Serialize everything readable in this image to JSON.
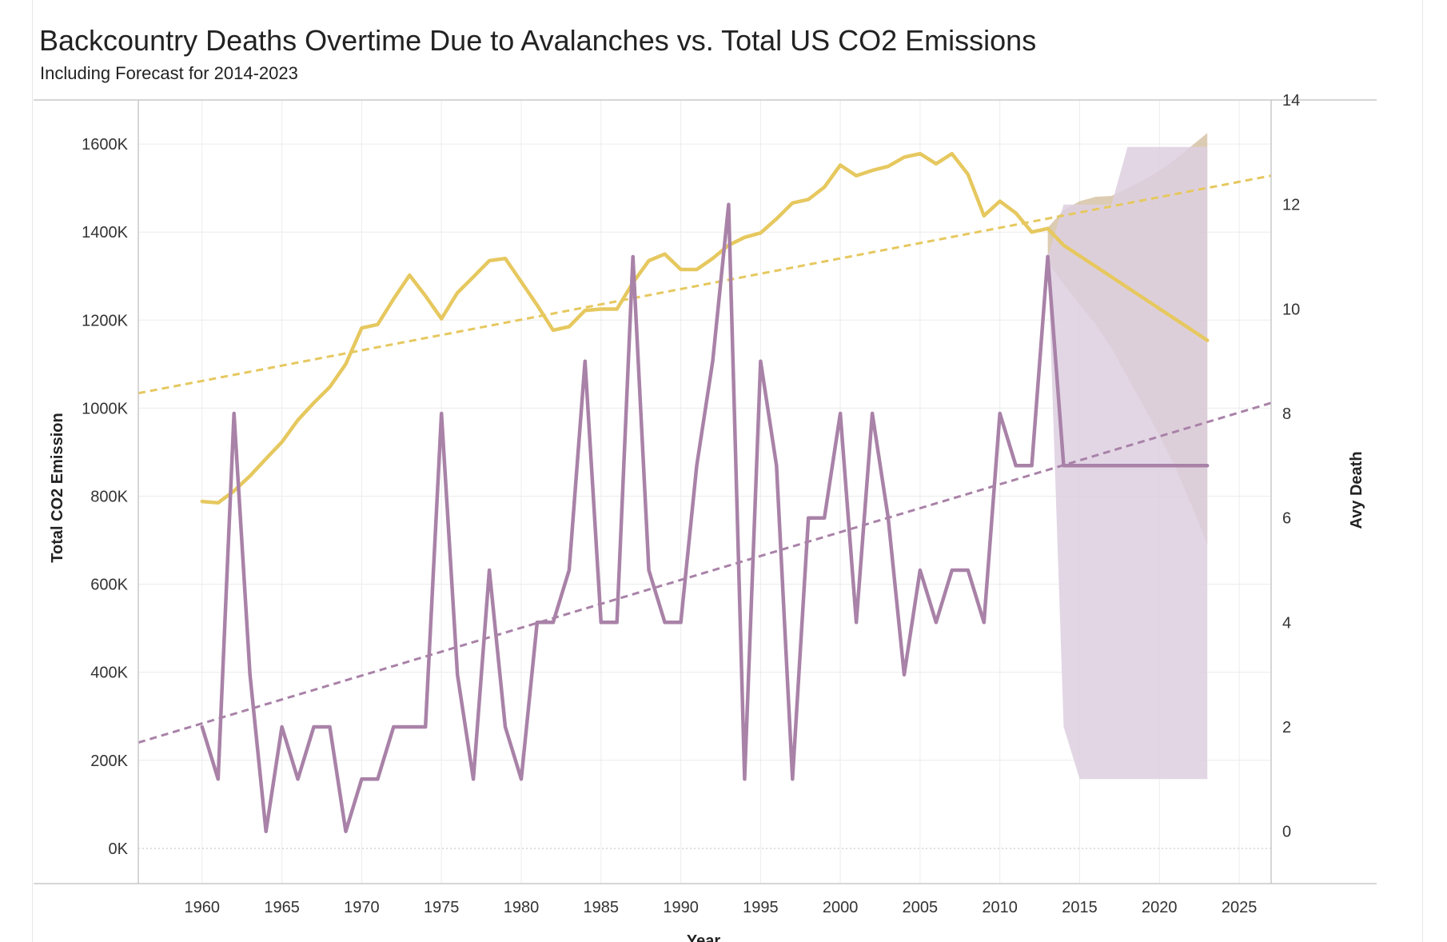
{
  "header": {
    "title": "Backcountry Deaths Overtime Due to Avalanches vs. Total US CO2 Emissions",
    "subtitle": "Including Forecast for 2014-2023"
  },
  "chart_data": {
    "type": "line",
    "xlabel": "Year",
    "ylabel_left": "Total CO2 Emission",
    "ylabel_right": "Avy Death",
    "xlim": [
      1956,
      2027
    ],
    "ylim_left": [
      -80000,
      1700000
    ],
    "ylim_right": [
      -1,
      14
    ],
    "x_ticks": [
      1960,
      1965,
      1970,
      1975,
      1980,
      1985,
      1990,
      1995,
      2000,
      2005,
      2010,
      2015,
      2020,
      2025
    ],
    "x_tick_labels": [
      "1960",
      "1965",
      "1970",
      "1975",
      "1980",
      "1985",
      "1990",
      "1995",
      "2000",
      "2005",
      "2010",
      "2015",
      "2020",
      "2025"
    ],
    "y_left_ticks": [
      0,
      200000,
      400000,
      600000,
      800000,
      1000000,
      1200000,
      1400000,
      1600000
    ],
    "y_left_tick_labels": [
      "0K",
      "200K",
      "400K",
      "600K",
      "800K",
      "1000K",
      "1200K",
      "1400K",
      "1600K"
    ],
    "y_right_ticks": [
      0,
      2,
      4,
      6,
      8,
      10,
      12,
      14
    ],
    "y_right_tick_labels": [
      "0",
      "2",
      "4",
      "6",
      "8",
      "10",
      "12",
      "14"
    ],
    "grid": true,
    "colors": {
      "co2": "#e6c85f",
      "deaths": "#a982a8",
      "co2_band": "#c9b08a",
      "deaths_band": "#ddcfe0"
    },
    "series": [
      {
        "axis": "left",
        "x": [
          1960,
          1961,
          1962,
          1963,
          1964,
          1965,
          1966,
          1967,
          1968,
          1969,
          1970,
          1971,
          1972,
          1973,
          1974,
          1975,
          1976,
          1977,
          1978,
          1979,
          1980,
          1981,
          1982,
          1983,
          1984,
          1985,
          1986,
          1987,
          1988,
          1989,
          1990,
          1991,
          1992,
          1993,
          1994,
          1995,
          1996,
          1997,
          1998,
          1999,
          2000,
          2001,
          2002,
          2003,
          2004,
          2005,
          2006,
          2007,
          2008,
          2009,
          2010,
          2011,
          2012,
          2013
        ],
        "values": [
          788000,
          785000,
          812000,
          846000,
          885000,
          923000,
          973000,
          1012000,
          1048000,
          1100000,
          1182000,
          1190000,
          1248000,
          1302000,
          1255000,
          1203000,
          1262000,
          1298000,
          1335000,
          1340000,
          1287000,
          1234000,
          1177000,
          1185000,
          1222000,
          1225000,
          1225000,
          1285000,
          1335000,
          1350000,
          1315000,
          1315000,
          1340000,
          1370000,
          1388000,
          1398000,
          1430000,
          1466000,
          1474000,
          1502000,
          1552000,
          1528000,
          1540000,
          1549000,
          1570000,
          1578000,
          1555000,
          1578000,
          1531000,
          1437000,
          1470000,
          1443000,
          1400000,
          1408000
        ]
      },
      {
        "axis": "left",
        "forecast": true,
        "x": [
          2013,
          2014,
          2023
        ],
        "values": [
          1408000,
          1370000,
          1154000
        ]
      },
      {
        "axis": "right",
        "x": [
          1960,
          1961,
          1962,
          1963,
          1964,
          1965,
          1966,
          1967,
          1968,
          1969,
          1970,
          1971,
          1972,
          1973,
          1974,
          1975,
          1976,
          1977,
          1978,
          1979,
          1980,
          1981,
          1982,
          1983,
          1984,
          1985,
          1986,
          1987,
          1988,
          1989,
          1990,
          1991,
          1992,
          1993,
          1994,
          1995,
          1996,
          1997,
          1998,
          1999,
          2000,
          2001,
          2002,
          2003,
          2004,
          2005,
          2006,
          2007,
          2008,
          2009,
          2010,
          2011,
          2012,
          2013
        ],
        "values": [
          2,
          1,
          8,
          3,
          0,
          2,
          1,
          2,
          2,
          0,
          1,
          1,
          2,
          2,
          2,
          8,
          3,
          1,
          5,
          2,
          1,
          4,
          4,
          5,
          9,
          4,
          4,
          11,
          5,
          4,
          4,
          7,
          9,
          12,
          1,
          9,
          7,
          1,
          6,
          6,
          8,
          4,
          8,
          6,
          3,
          5,
          4,
          5,
          5,
          4,
          8,
          7,
          7,
          11
        ]
      },
      {
        "axis": "right",
        "forecast": true,
        "x": [
          2013,
          2014,
          2023
        ],
        "values": [
          11,
          7,
          7
        ]
      }
    ],
    "trend_lines": [
      {
        "axis": "left",
        "x": [
          1956,
          2027
        ],
        "values": [
          1034000,
          1528000
        ]
      },
      {
        "axis": "right",
        "x": [
          1956,
          2027
        ],
        "values": [
          1.7,
          8.2
        ]
      }
    ],
    "forecast_bands": [
      {
        "axis": "left",
        "x": [
          2013,
          2014,
          2015,
          2016,
          2017,
          2018,
          2019,
          2020,
          2021,
          2022,
          2023
        ],
        "upper": [
          1410000,
          1450000,
          1470000,
          1480000,
          1482000,
          1500000,
          1518000,
          1540000,
          1565000,
          1595000,
          1625000
        ],
        "lower": [
          1330000,
          1282000,
          1235000,
          1190000,
          1135000,
          1070000,
          1005000,
          937000,
          865000,
          780000,
          690000
        ]
      },
      {
        "axis": "right",
        "x": [
          2013,
          2014,
          2015,
          2016,
          2017,
          2018,
          2019,
          2020,
          2021,
          2022,
          2023
        ],
        "upper": [
          11,
          12,
          12,
          12,
          12,
          13.1,
          13.1,
          13.1,
          13.1,
          13.1,
          13.1
        ],
        "lower": [
          11,
          2,
          1,
          1,
          1,
          1,
          1,
          1,
          1,
          1,
          1
        ]
      }
    ]
  }
}
